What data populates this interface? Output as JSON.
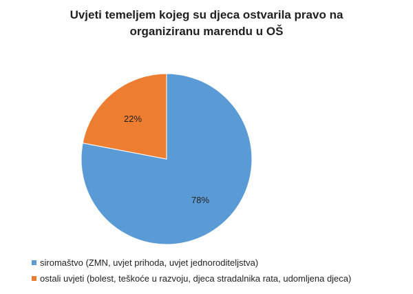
{
  "chart_data": {
    "type": "pie",
    "title_lines": [
      "Uvjeti temeljem kojeg su djeca ostvarila pravo na",
      "organiziranu marendu u OŠ"
    ],
    "slices": [
      {
        "label": "siromaštvo (ZMN, uvjet prihoda, uvjet jednoroditeljstva)",
        "value": 78,
        "data_label": "78%",
        "color": "#5b9bd5"
      },
      {
        "label": "ostali uvjeti (bolest, teškoće u razvoju, djeca stradalnika rata, udomljena djeca)",
        "value": 22,
        "data_label": "22%",
        "color": "#ed7d31"
      }
    ],
    "start": "top",
    "direction": "clockwise",
    "legend_position": "bottom-left"
  }
}
